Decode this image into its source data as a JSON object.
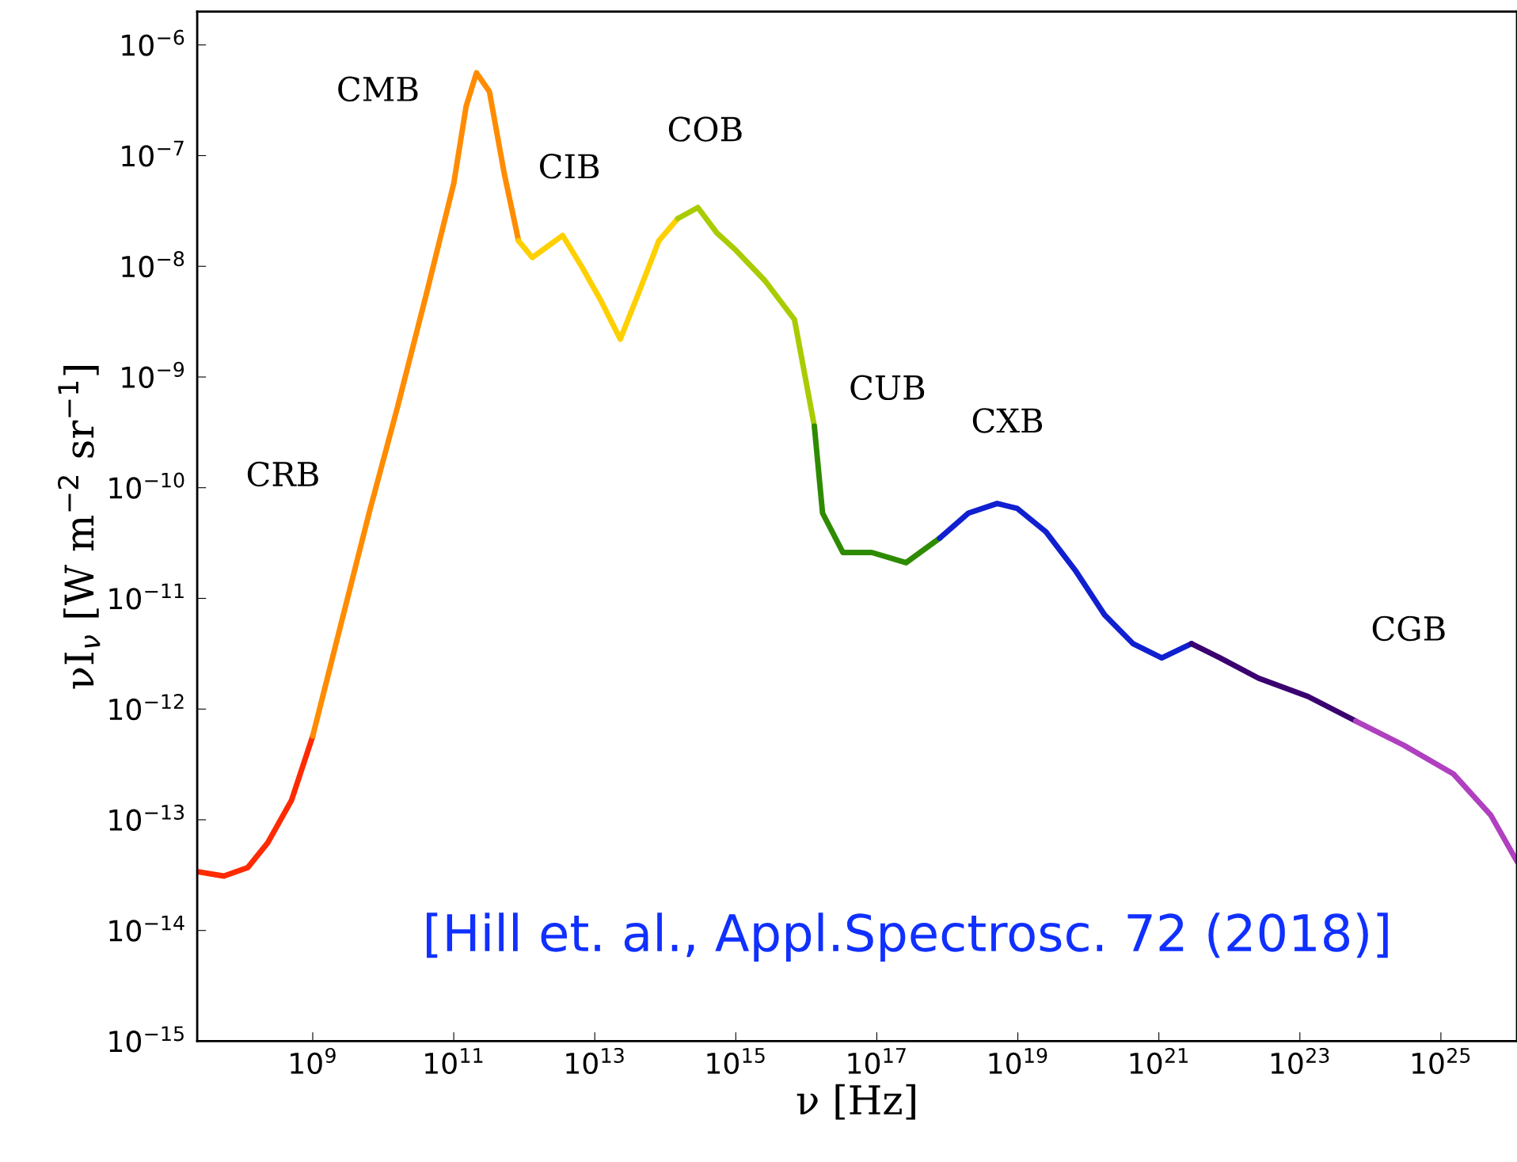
{
  "chart_data": {
    "type": "line",
    "xlabel": "ν [Hz]",
    "ylabel": "νI$_{ν}$ [W m$^{−2}$ sr$^{−1}$]",
    "log": "xy",
    "grid": false,
    "marker": "none",
    "line_style": "solid",
    "xlim": [
      23000000.0,
      1.2e+26
    ],
    "ylim": [
      1e-15,
      2e-06
    ],
    "xticks": [
      {
        "value": 1000000000.0,
        "label": "10$^{9}$"
      },
      {
        "value": 100000000000.0,
        "label": "10$^{11}$"
      },
      {
        "value": 10000000000000.0,
        "label": "10$^{13}$"
      },
      {
        "value": 1000000000000000.0,
        "label": "10$^{15}$"
      },
      {
        "value": 1e+17,
        "label": "10$^{17}$"
      },
      {
        "value": 1e+19,
        "label": "10$^{19}$"
      },
      {
        "value": 1e+21,
        "label": "10$^{21}$"
      },
      {
        "value": 1e+23,
        "label": "10$^{23}$"
      },
      {
        "value": 1e+25,
        "label": "10$^{25}$"
      }
    ],
    "yticks": [
      {
        "value": 1e-15,
        "label": "10$^{−15}$"
      },
      {
        "value": 1e-14,
        "label": "10$^{−14}$"
      },
      {
        "value": 1e-13,
        "label": "10$^{−13}$"
      },
      {
        "value": 1e-12,
        "label": "10$^{−12}$"
      },
      {
        "value": 1e-11,
        "label": "10$^{−11}$"
      },
      {
        "value": 1e-10,
        "label": "10$^{−10}$"
      },
      {
        "value": 1e-09,
        "label": "10$^{−9}$"
      },
      {
        "value": 1e-08,
        "label": "10$^{−8}$"
      },
      {
        "value": 1e-07,
        "label": "10$^{−7}$"
      },
      {
        "value": 1e-06,
        "label": "10$^{−6}$"
      }
    ],
    "series": [
      {
        "color": "#ff2a00",
        "x": [
          23000000.0,
          55000000.0,
          120000000.0,
          230000000.0,
          500000000.0,
          1000000000.0
        ],
        "values": [
          3.4e-14,
          3.1e-14,
          3.7e-14,
          6.2e-14,
          1.5e-13,
          5.7e-13
        ]
      },
      {
        "color": "#ff8c00",
        "x": [
          1000000000.0,
          2400000000.0,
          6300000000.0,
          16000000000.0,
          42000000000.0,
          100000000000.0,
          150000000000.0,
          210000000000.0,
          320000000000.0,
          520000000000.0,
          830000000000.0
        ],
        "values": [
          5.7e-13,
          5.2e-12,
          5.9e-11,
          5.4e-10,
          6e-09,
          5.6e-08,
          2.8e-07,
          5.6e-07,
          3.8e-07,
          6.9e-08,
          1.7e-08
        ]
      },
      {
        "color": "#ffd000",
        "x": [
          830000000000.0,
          1300000000000.0,
          2100000000000.0,
          3500000000000.0,
          6500000000000.0,
          12000000000000.0,
          23000000000000.0,
          43000000000000.0,
          81000000000000.0,
          150000000000000.0
        ],
        "values": [
          1.7e-08,
          1.2e-08,
          1.5e-08,
          1.9e-08,
          1e-08,
          5e-09,
          2.2e-09,
          6e-09,
          1.7e-08,
          2.7e-08
        ]
      },
      {
        "color": "#a8cc00",
        "x": [
          150000000000000.0,
          290000000000000.0,
          540000000000000.0,
          1000000000000000.0,
          2600000000000000.0,
          6800000000000000.0,
          1.3e+16
        ],
        "values": [
          2.7e-08,
          3.4e-08,
          2e-08,
          1.4e-08,
          7.4e-09,
          3.3e-09,
          3.6e-10
        ]
      },
      {
        "color": "#2e8b00",
        "x": [
          1.3e+16,
          1.7e+16,
          3.3e+16,
          8.5e+16,
          2.6e+17,
          7.8e+17
        ],
        "values": [
          3.6e-10,
          5.9e-11,
          2.6e-11,
          2.6e-11,
          2.1e-11,
          3.5e-11
        ]
      },
      {
        "color": "#1020d0",
        "x": [
          7.8e+17,
          2e+18,
          5.1e+18,
          9.8e+18,
          2.5e+19,
          6.5e+19,
          1.7e+20,
          4.3e+20,
          1.1e+21,
          2.9e+21
        ],
        "values": [
          3.5e-11,
          5.9e-11,
          7.2e-11,
          6.5e-11,
          4e-11,
          1.8e-11,
          7.1e-12,
          3.9e-12,
          2.9e-12,
          3.9e-12
        ]
      },
      {
        "color": "#3a0070",
        "x": [
          2.9e+21,
          7.4e+21,
          2.6e+22,
          1.3e+23,
          6.2e+23
        ],
        "values": [
          3.9e-12,
          2.9e-12,
          1.9e-12,
          1.3e-12,
          7.8e-13
        ]
      },
      {
        "color": "#b040c0",
        "x": [
          6.2e+23,
          3e+24,
          1.5e+25,
          5.1e+25,
          1.2e+26
        ],
        "values": [
          7.8e-13,
          4.7e-13,
          2.6e-13,
          1.1e-13,
          4.2e-14
        ]
      }
    ],
    "annotations": [
      "CRB",
      "CMB",
      "CIB",
      "COB",
      "CUB",
      "CXB",
      "CGB",
      "[Hill et. al., Appl.Spectrosc. 72 (2018)]"
    ]
  }
}
